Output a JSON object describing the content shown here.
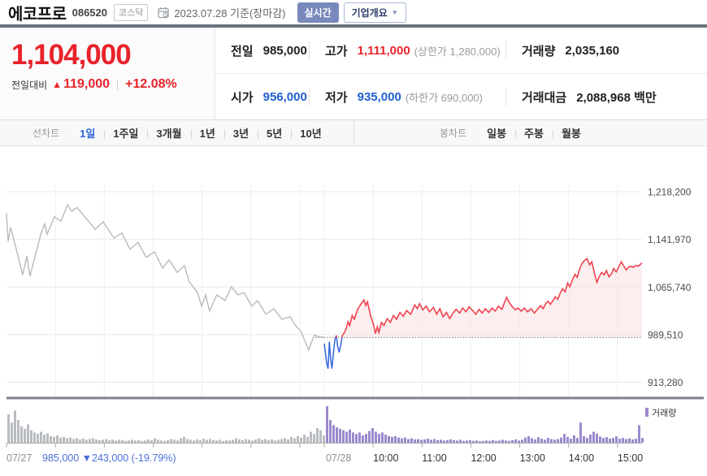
{
  "colors": {
    "up_text": "#e8232a",
    "down_blue": "#1f5fd0",
    "footer_blue": "#4a6fd8",
    "tab_active": "#2d64d8",
    "line_prev": "#b7babf",
    "line_up": "#ef4450",
    "line_down": "#3d6ce0",
    "fill_up": "#f9e3e3",
    "vol_prev": "#b9bcc1",
    "vol_cur": "#9b89cd",
    "axis_dark": "#7c818a",
    "grid": "#e9e9e9",
    "label_gray": "#909090",
    "label_dark": "#333333"
  },
  "header": {
    "title": "에코프로",
    "code": "086520",
    "market_badge": "코스닥",
    "date": "2023.07.28 기준(장마감)",
    "realtime_button": "실시간",
    "overview_button": "기업개요",
    "overview_arrow": "▼"
  },
  "price_box": {
    "current": "1,104,000",
    "change_label": "전일대비",
    "change_arrow": "▲",
    "change_value": "119,000",
    "change_pct": "+12.08%"
  },
  "info": {
    "cells": [
      {
        "label": "전일",
        "value": "985,000",
        "extra": "",
        "color": "label_dark"
      },
      {
        "label": "고가",
        "value": "1,111,000",
        "extra": "(상한가 1,280,000)",
        "color": "up_text"
      },
      {
        "label": "거래량",
        "value": "2,035,160",
        "extra": "",
        "color": "label_dark"
      },
      {
        "label": "시가",
        "value": "956,000",
        "extra": "",
        "color": "down_blue"
      },
      {
        "label": "저가",
        "value": "935,000",
        "extra": "(하한가 690,000)",
        "color": "down_blue"
      },
      {
        "label": "거래대금",
        "value": "2,088,968 백만",
        "extra": "",
        "color": "label_dark"
      }
    ]
  },
  "period_tabs": {
    "line_label": "선차트",
    "line_items": [
      "1일",
      "1주일",
      "3개월",
      "1년",
      "3년",
      "5년",
      "10년"
    ],
    "line_selected": "1일",
    "candle_label": "봉차트",
    "candle_items": [
      "일봉",
      "주봉",
      "월봉"
    ]
  },
  "legend": {
    "volume_label": "거래량"
  },
  "footer": {
    "day1_label": "07/27",
    "day1_change": "985,000 ▼243,000 (-19.79%)",
    "day2_label": "07/28",
    "time_labels": [
      "10:00",
      "11:00",
      "12:00",
      "13:00",
      "14:00",
      "15:00"
    ]
  },
  "chart_data": {
    "type": "line",
    "title": "에코프로 1일(2일) 분봉 선차트 + 거래량",
    "legend_position": "right-bottom",
    "grid": true,
    "y_axis": {
      "range": [
        913280,
        1218200
      ],
      "ticks": [
        {
          "label": "1,218,200",
          "value": 1218200
        },
        {
          "label": "1,141,970",
          "value": 1141970
        },
        {
          "label": "1,065,740",
          "value": 1065740
        },
        {
          "label": "989,510",
          "value": 989510
        },
        {
          "label": "913,280",
          "value": 913280
        }
      ]
    },
    "prev_close_line": {
      "value": 985000,
      "style": "dotted"
    },
    "session_hours": {
      "start": 9,
      "end": 15.5
    },
    "x_gridline_hours": [
      10,
      11,
      12,
      13,
      14,
      15
    ],
    "sessions": [
      {
        "date": "07/27",
        "style": "prev",
        "points": [
          [
            0,
            1184000
          ],
          [
            0.005,
            1139000
          ],
          [
            0.013,
            1161000
          ],
          [
            0.03,
            1128000
          ],
          [
            0.051,
            1085000
          ],
          [
            0.064,
            1115000
          ],
          [
            0.074,
            1083000
          ],
          [
            0.107,
            1148000
          ],
          [
            0.12,
            1167000
          ],
          [
            0.128,
            1150000
          ],
          [
            0.151,
            1178000
          ],
          [
            0.171,
            1171000
          ],
          [
            0.192,
            1197000
          ],
          [
            0.205,
            1187000
          ],
          [
            0.222,
            1193000
          ],
          [
            0.253,
            1174000
          ],
          [
            0.279,
            1158000
          ],
          [
            0.304,
            1170000
          ],
          [
            0.338,
            1144000
          ],
          [
            0.363,
            1152000
          ],
          [
            0.389,
            1126000
          ],
          [
            0.414,
            1137000
          ],
          [
            0.44,
            1113000
          ],
          [
            0.466,
            1122000
          ],
          [
            0.491,
            1096000
          ],
          [
            0.512,
            1109000
          ],
          [
            0.537,
            1089000
          ],
          [
            0.56,
            1100000
          ],
          [
            0.575,
            1074000
          ],
          [
            0.601,
            1057000
          ],
          [
            0.614,
            1035000
          ],
          [
            0.627,
            1053000
          ],
          [
            0.639,
            1027000
          ],
          [
            0.662,
            1053000
          ],
          [
            0.688,
            1044000
          ],
          [
            0.708,
            1066000
          ],
          [
            0.729,
            1053000
          ],
          [
            0.747,
            1057000
          ],
          [
            0.772,
            1035000
          ],
          [
            0.79,
            1044000
          ],
          [
            0.816,
            1022000
          ],
          [
            0.841,
            1031000
          ],
          [
            0.867,
            1014000
          ],
          [
            0.893,
            1018000
          ],
          [
            0.908,
            1005000
          ],
          [
            0.926,
            995000
          ],
          [
            0.951,
            965000
          ],
          [
            0.969,
            989000
          ],
          [
            0.982,
            986000
          ],
          [
            1,
            985000
          ]
        ],
        "volume": [
          78,
          55,
          88,
          62,
          45,
          38,
          50,
          34,
          28,
          24,
          30,
          22,
          26,
          18,
          16,
          20,
          14,
          16,
          12,
          14,
          10,
          12,
          9,
          11,
          8,
          10,
          12,
          9,
          7,
          8,
          10,
          7,
          9,
          6,
          8,
          7,
          5,
          6,
          8,
          6,
          7,
          5,
          6,
          9,
          7,
          12,
          8,
          6,
          5,
          7,
          10,
          8,
          6,
          12,
          16,
          10,
          8,
          6,
          9,
          7,
          11,
          8,
          10,
          7,
          6,
          8,
          5,
          7,
          6,
          8,
          12,
          9,
          7,
          10,
          8,
          6,
          9,
          12,
          8,
          10,
          7,
          9,
          6,
          8,
          10,
          13,
          9,
          16,
          12,
          18,
          14,
          22,
          16,
          30,
          24,
          40,
          34,
          20
        ]
      },
      {
        "date": "07/28",
        "style": "current",
        "points": [
          [
            0,
            975000
          ],
          [
            0.008,
            943000
          ],
          [
            0.012,
            935000
          ],
          [
            0.016,
            978000
          ],
          [
            0.02,
            952000
          ],
          [
            0.024,
            935000
          ],
          [
            0.03,
            965000
          ],
          [
            0.034,
            983000
          ],
          [
            0.038,
            988000
          ],
          [
            0.042,
            971000
          ],
          [
            0.047,
            961000
          ],
          [
            0.052,
            973000
          ],
          [
            0.057,
            988000
          ],
          [
            0.065,
            994000
          ],
          [
            0.07,
            1001000
          ],
          [
            0.075,
            1010000
          ],
          [
            0.08,
            1004000
          ],
          [
            0.088,
            1020000
          ],
          [
            0.095,
            1014000
          ],
          [
            0.105,
            1030000
          ],
          [
            0.115,
            1038000
          ],
          [
            0.125,
            1045000
          ],
          [
            0.131,
            1036000
          ],
          [
            0.136,
            1042000
          ],
          [
            0.146,
            1019000
          ],
          [
            0.155,
            1006000
          ],
          [
            0.161,
            991000
          ],
          [
            0.167,
            1002000
          ],
          [
            0.172,
            993000
          ],
          [
            0.18,
            1009000
          ],
          [
            0.188,
            1004000
          ],
          [
            0.198,
            1015000
          ],
          [
            0.208,
            1009000
          ],
          [
            0.218,
            1020000
          ],
          [
            0.228,
            1014000
          ],
          [
            0.238,
            1025000
          ],
          [
            0.249,
            1019000
          ],
          [
            0.259,
            1028000
          ],
          [
            0.272,
            1022000
          ],
          [
            0.285,
            1037000
          ],
          [
            0.293,
            1031000
          ],
          [
            0.3,
            1039000
          ],
          [
            0.31,
            1029000
          ],
          [
            0.321,
            1035000
          ],
          [
            0.331,
            1026000
          ],
          [
            0.344,
            1033000
          ],
          [
            0.354,
            1022000
          ],
          [
            0.364,
            1031000
          ],
          [
            0.374,
            1018000
          ],
          [
            0.385,
            1025000
          ],
          [
            0.395,
            1015000
          ],
          [
            0.405,
            1024000
          ],
          [
            0.415,
            1030000
          ],
          [
            0.426,
            1024000
          ],
          [
            0.436,
            1032000
          ],
          [
            0.446,
            1026000
          ],
          [
            0.456,
            1034000
          ],
          [
            0.467,
            1028000
          ],
          [
            0.477,
            1022000
          ],
          [
            0.487,
            1030000
          ],
          [
            0.497,
            1024000
          ],
          [
            0.507,
            1031000
          ],
          [
            0.518,
            1025000
          ],
          [
            0.528,
            1032000
          ],
          [
            0.538,
            1027000
          ],
          [
            0.548,
            1035000
          ],
          [
            0.559,
            1030000
          ],
          [
            0.566,
            1039000
          ],
          [
            0.574,
            1049000
          ],
          [
            0.582,
            1041000
          ],
          [
            0.592,
            1034000
          ],
          [
            0.602,
            1029000
          ],
          [
            0.61,
            1032000
          ],
          [
            0.62,
            1027000
          ],
          [
            0.63,
            1032000
          ],
          [
            0.64,
            1026000
          ],
          [
            0.651,
            1031000
          ],
          [
            0.661,
            1024000
          ],
          [
            0.671,
            1030000
          ],
          [
            0.681,
            1036000
          ],
          [
            0.689,
            1031000
          ],
          [
            0.697,
            1039000
          ],
          [
            0.704,
            1043000
          ],
          [
            0.712,
            1038000
          ],
          [
            0.72,
            1044000
          ],
          [
            0.727,
            1050000
          ],
          [
            0.735,
            1046000
          ],
          [
            0.743,
            1056000
          ],
          [
            0.75,
            1063000
          ],
          [
            0.758,
            1058000
          ],
          [
            0.766,
            1072000
          ],
          [
            0.773,
            1066000
          ],
          [
            0.781,
            1077000
          ],
          [
            0.789,
            1086000
          ],
          [
            0.796,
            1081000
          ],
          [
            0.804,
            1095000
          ],
          [
            0.812,
            1104000
          ],
          [
            0.819,
            1108000
          ],
          [
            0.827,
            1111000
          ],
          [
            0.835,
            1101000
          ],
          [
            0.842,
            1106000
          ],
          [
            0.85,
            1089000
          ],
          [
            0.858,
            1073000
          ],
          [
            0.865,
            1082000
          ],
          [
            0.873,
            1089000
          ],
          [
            0.881,
            1085000
          ],
          [
            0.888,
            1092000
          ],
          [
            0.896,
            1082000
          ],
          [
            0.904,
            1087000
          ],
          [
            0.911,
            1095000
          ],
          [
            0.919,
            1090000
          ],
          [
            0.927,
            1098000
          ],
          [
            0.935,
            1106000
          ],
          [
            0.942,
            1100000
          ],
          [
            0.95,
            1093000
          ],
          [
            0.957,
            1097000
          ],
          [
            0.965,
            1099000
          ],
          [
            0.972,
            1097000
          ],
          [
            0.98,
            1100000
          ],
          [
            0.988,
            1099000
          ],
          [
            0.995,
            1102000
          ],
          [
            1,
            1104000
          ]
        ],
        "volume": [
          100,
          62,
          48,
          42,
          38,
          34,
          30,
          36,
          28,
          24,
          28,
          20,
          24,
          32,
          40,
          30,
          24,
          28,
          22,
          18,
          16,
          18,
          14,
          12,
          14,
          10,
          12,
          9,
          10,
          8,
          9,
          11,
          8,
          10,
          7,
          8,
          6,
          7,
          9,
          7,
          6,
          8,
          5,
          6,
          7,
          5,
          6,
          4,
          5,
          6,
          5,
          7,
          5,
          6,
          8,
          6,
          5,
          7,
          9,
          6,
          8,
          14,
          18,
          12,
          9,
          15,
          11,
          8,
          13,
          10,
          8,
          10,
          14,
          24,
          16,
          11,
          20,
          13,
          55,
          18,
          13,
          22,
          30,
          25,
          17,
          13,
          15,
          11,
          13,
          17,
          11,
          13,
          10,
          12,
          9,
          11,
          48,
          13
        ]
      }
    ]
  }
}
